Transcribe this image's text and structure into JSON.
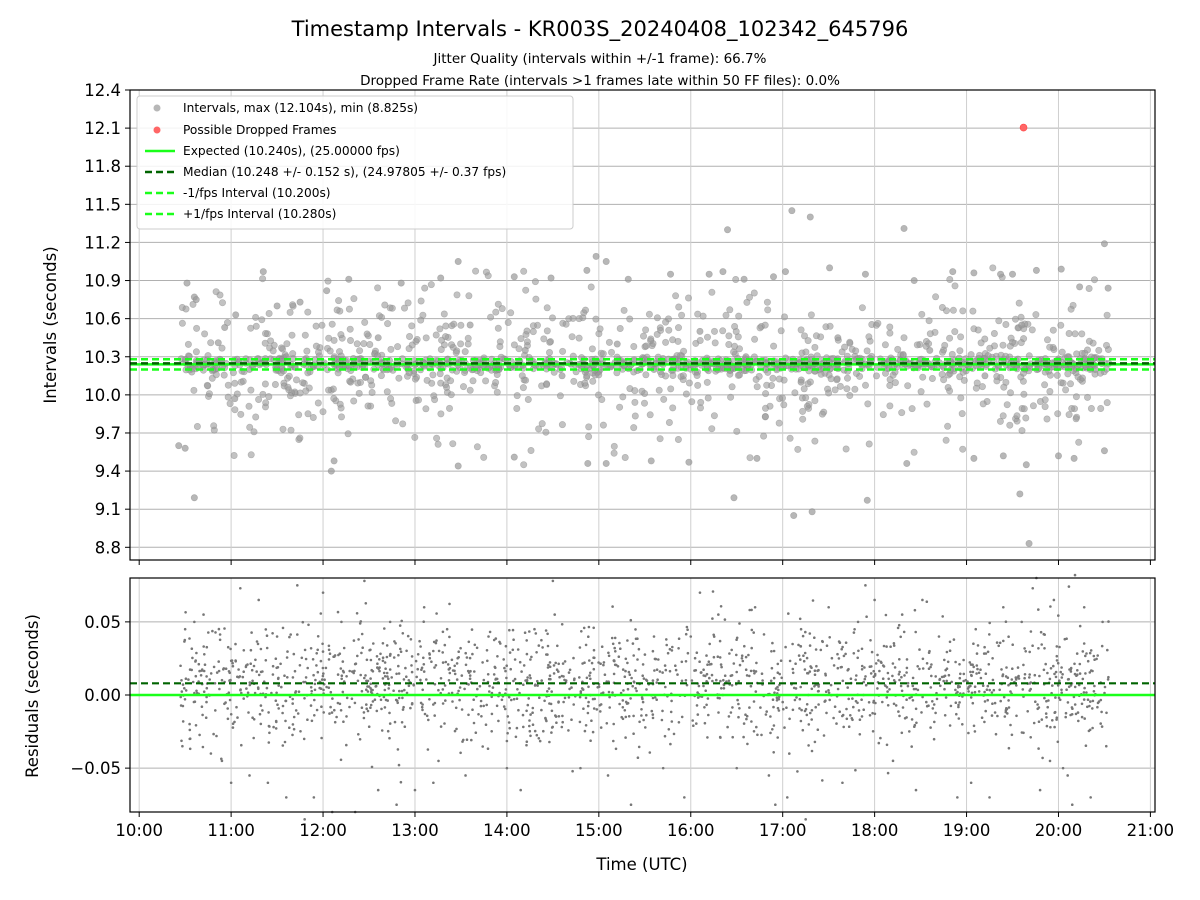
{
  "chart_data": [
    {
      "panel": "intervals",
      "type": "scatter",
      "title": "Timestamp Intervals - KR003S_20240408_102342_645796",
      "subtitle_lines": [
        "Jitter Quality (intervals within +/-1 frame): 66.7%",
        "Dropped Frame Rate (intervals >1 frames late within 50 FF files): 0.0%"
      ],
      "ylabel": "Intervals (seconds)",
      "ylim": [
        8.7,
        12.4
      ],
      "yticks": [
        "8.8",
        "9.1",
        "9.4",
        "9.7",
        "10.0",
        "10.3",
        "10.6",
        "10.9",
        "11.2",
        "11.5",
        "11.8",
        "12.1",
        "12.4"
      ],
      "xlim_hours": [
        9.9,
        21.05
      ],
      "grid": true,
      "legend_position": "top-left",
      "colors": {
        "points": "#999999",
        "dropped": "#ff6666",
        "expected": "#1aff1a",
        "median": "#006400",
        "fps_interval": "#1aff1a"
      },
      "expected_interval": 10.24,
      "median_interval": 10.248,
      "minus_fps_interval": 10.2,
      "plus_fps_interval": 10.28,
      "legend": [
        "Intervals, max (12.104s), min (8.825s)",
        "Possible Dropped Frames",
        "Expected (10.240s), (25.00000 fps)",
        "Median (10.248 +/- 0.152 s), (24.97805 +/- 0.37 fps)",
        "-1/fps Interval (10.200s)",
        "+1/fps Interval (10.280s)"
      ],
      "series": [
        {
          "name": "Intervals",
          "values": [
            [
              10.43,
              9.6
            ],
            [
              10.5,
              9.58
            ],
            [
              10.52,
              10.88
            ],
            [
              10.6,
              10.77
            ],
            [
              10.62,
              10.75
            ],
            [
              10.6,
              9.19
            ],
            [
              10.86,
              10.41
            ],
            [
              10.93,
              10.53
            ],
            [
              11.04,
              9.97
            ],
            [
              11.05,
              10.63
            ],
            [
              11.35,
              10.97
            ],
            [
              11.5,
              10.7
            ],
            [
              11.75,
              10.73
            ],
            [
              12.04,
              10.82
            ],
            [
              12.09,
              9.4
            ],
            [
              12.12,
              9.48
            ],
            [
              12.28,
              10.91
            ],
            [
              12.85,
              10.88
            ],
            [
              13.28,
              10.92
            ],
            [
              13.47,
              11.05
            ],
            [
              13.47,
              9.44
            ],
            [
              14.08,
              10.93
            ],
            [
              14.08,
              9.51
            ],
            [
              14.48,
              10.92
            ],
            [
              14.87,
              10.98
            ],
            [
              14.88,
              9.46
            ],
            [
              14.97,
              11.09
            ],
            [
              15.08,
              11.05
            ],
            [
              15.08,
              9.46
            ],
            [
              15.32,
              10.91
            ],
            [
              15.57,
              9.48
            ],
            [
              15.78,
              10.95
            ],
            [
              15.98,
              9.47
            ],
            [
              16.2,
              10.95
            ],
            [
              16.35,
              10.97
            ],
            [
              16.4,
              11.3
            ],
            [
              16.47,
              9.19
            ],
            [
              16.58,
              10.91
            ],
            [
              16.72,
              9.5
            ],
            [
              16.9,
              10.93
            ],
            [
              17.03,
              10.97
            ],
            [
              17.1,
              11.45
            ],
            [
              17.12,
              9.05
            ],
            [
              17.3,
              11.4
            ],
            [
              17.32,
              9.08
            ],
            [
              17.51,
              11.0
            ],
            [
              17.9,
              10.95
            ],
            [
              17.92,
              9.17
            ],
            [
              18.32,
              11.31
            ],
            [
              18.35,
              9.46
            ],
            [
              18.43,
              10.9
            ],
            [
              18.85,
              10.97
            ],
            [
              19.08,
              10.96
            ],
            [
              19.08,
              9.5
            ],
            [
              19.37,
              10.95
            ],
            [
              19.4,
              9.52
            ],
            [
              19.5,
              10.95
            ],
            [
              19.58,
              9.22
            ],
            [
              19.65,
              9.45
            ],
            [
              19.68,
              8.83
            ],
            [
              19.76,
              10.98
            ],
            [
              20.0,
              9.52
            ],
            [
              20.03,
              10.99
            ],
            [
              20.17,
              9.5
            ],
            [
              20.23,
              10.85
            ],
            [
              20.5,
              11.19
            ],
            [
              20.5,
              9.56
            ],
            [
              20.54,
              10.84
            ],
            [
              11.2,
              10.2
            ],
            [
              11.6,
              10.3
            ],
            [
              12.3,
              10.1
            ],
            [
              12.6,
              10.45
            ],
            [
              13.1,
              10.25
            ],
            [
              13.6,
              10.55
            ],
            [
              14.2,
              10.35
            ],
            [
              14.6,
              10.15
            ],
            [
              15.2,
              10.4
            ],
            [
              15.6,
              10.2
            ],
            [
              16.1,
              10.5
            ],
            [
              16.6,
              10.3
            ],
            [
              17.2,
              10.1
            ],
            [
              17.6,
              10.45
            ],
            [
              18.1,
              10.25
            ],
            [
              18.6,
              10.35
            ],
            [
              19.2,
              10.15
            ],
            [
              19.6,
              10.55
            ],
            [
              20.1,
              10.3
            ],
            [
              20.4,
              10.2
            ]
          ]
        },
        {
          "name": "Possible Dropped Frames",
          "values": [
            [
              19.62,
              12.104
            ]
          ]
        }
      ]
    },
    {
      "panel": "residuals",
      "type": "scatter",
      "xlabel": "Time (UTC)",
      "ylabel": "Residuals (seconds)",
      "ylim": [
        -0.08,
        0.08
      ],
      "yticks": [
        "−0.05",
        "0.00",
        "0.05"
      ],
      "xticks": [
        "10:00",
        "11:00",
        "12:00",
        "13:00",
        "14:00",
        "15:00",
        "16:00",
        "17:00",
        "18:00",
        "19:00",
        "20:00",
        "21:00"
      ],
      "xlim_hours": [
        9.9,
        21.05
      ],
      "grid": true,
      "expected_line": 0.0,
      "median_line": 0.008,
      "colors": {
        "points": "#777777",
        "expected": "#1aff1a",
        "median": "#006400"
      },
      "series": [
        {
          "name": "Residuals",
          "values": [
            [
              10.45,
              0.02
            ],
            [
              10.47,
              -0.035
            ],
            [
              10.5,
              0.045
            ],
            [
              10.55,
              -0.03
            ],
            [
              10.6,
              0.05
            ],
            [
              10.7,
              0.055
            ],
            [
              10.78,
              -0.04
            ],
            [
              10.9,
              -0.045
            ],
            [
              11.0,
              -0.06
            ],
            [
              11.1,
              0.073
            ],
            [
              11.2,
              -0.055
            ],
            [
              11.3,
              0.065
            ],
            [
              11.4,
              -0.06
            ],
            [
              11.5,
              0.04
            ],
            [
              11.6,
              -0.07
            ],
            [
              11.72,
              0.075
            ],
            [
              11.8,
              -0.085
            ],
            [
              11.9,
              -0.07
            ],
            [
              12.0,
              0.07
            ],
            [
              12.1,
              -0.08
            ],
            [
              12.2,
              0.05
            ],
            [
              12.35,
              -0.08
            ],
            [
              12.45,
              0.078
            ],
            [
              12.6,
              -0.065
            ],
            [
              12.73,
              0.05
            ],
            [
              12.8,
              -0.075
            ],
            [
              13.0,
              -0.065
            ],
            [
              13.1,
              0.06
            ],
            [
              13.2,
              -0.06
            ],
            [
              13.35,
              0.045
            ],
            [
              13.55,
              -0.055
            ],
            [
              13.8,
              0.04
            ],
            [
              14.0,
              -0.05
            ],
            [
              14.15,
              -0.065
            ],
            [
              14.3,
              0.045
            ],
            [
              14.5,
              0.078
            ],
            [
              14.52,
              0.055
            ],
            [
              14.8,
              -0.05
            ],
            [
              15.1,
              -0.055
            ],
            [
              15.35,
              -0.075
            ],
            [
              15.6,
              0.04
            ],
            [
              15.7,
              -0.05
            ],
            [
              15.93,
              -0.07
            ],
            [
              16.0,
              0.04
            ],
            [
              16.1,
              0.07
            ],
            [
              16.3,
              0.055
            ],
            [
              16.5,
              -0.05
            ],
            [
              16.7,
              0.06
            ],
            [
              16.85,
              -0.055
            ],
            [
              16.92,
              -0.075
            ],
            [
              17.05,
              -0.07
            ],
            [
              17.2,
              0.045
            ],
            [
              17.25,
              -0.085
            ],
            [
              17.5,
              0.06
            ],
            [
              17.65,
              -0.06
            ],
            [
              17.82,
              0.05
            ],
            [
              17.9,
              0.075
            ],
            [
              18.0,
              0.065
            ],
            [
              18.2,
              -0.045
            ],
            [
              18.3,
              0.055
            ],
            [
              18.45,
              -0.065
            ],
            [
              18.52,
              0.065
            ],
            [
              18.7,
              0.04
            ],
            [
              18.9,
              -0.07
            ],
            [
              19.05,
              -0.06
            ],
            [
              19.1,
              0.045
            ],
            [
              19.25,
              -0.07
            ],
            [
              19.4,
              0.06
            ],
            [
              19.6,
              0.05
            ],
            [
              19.72,
              0.073
            ],
            [
              19.76,
              0.08
            ],
            [
              19.8,
              -0.065
            ],
            [
              19.95,
              0.065
            ],
            [
              20.05,
              -0.05
            ],
            [
              20.1,
              -0.055
            ],
            [
              20.15,
              -0.075
            ],
            [
              20.18,
              0.082
            ],
            [
              20.28,
              0.06
            ],
            [
              20.35,
              -0.07
            ],
            [
              20.48,
              0.05
            ],
            [
              20.52,
              -0.035
            ]
          ]
        }
      ]
    }
  ]
}
